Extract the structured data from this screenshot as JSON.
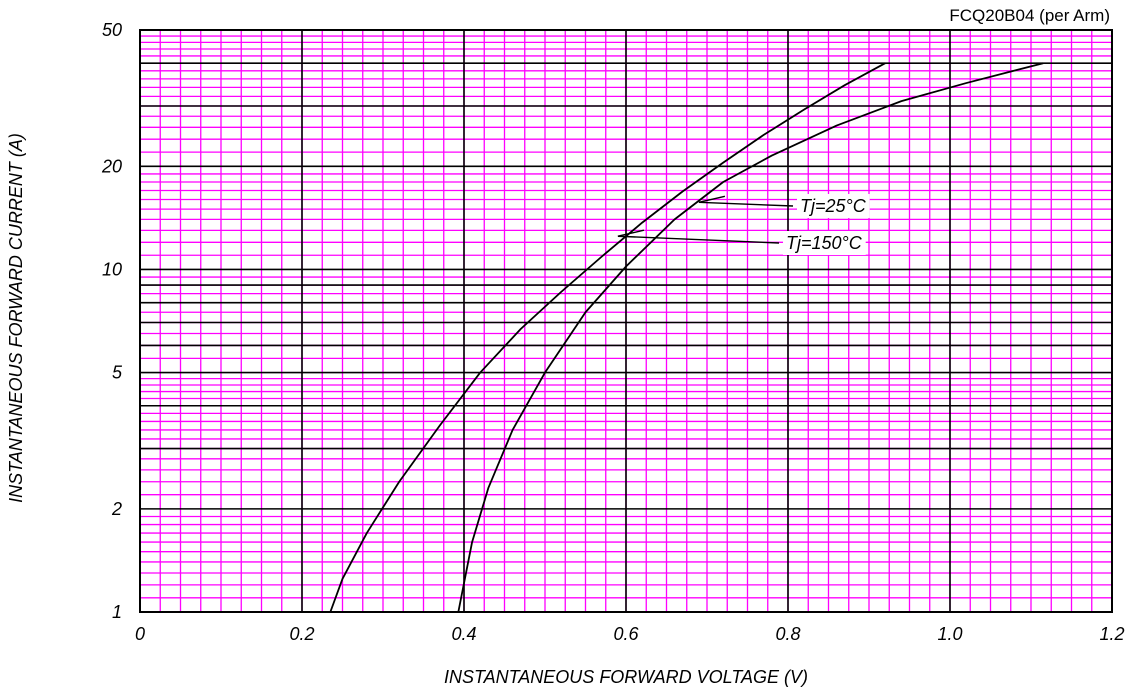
{
  "chart_data": {
    "type": "line",
    "subtitle": "FCQ20B04 (per Arm)",
    "xlabel": "INSTANTANEOUS FORWARD VOLTAGE (V)",
    "ylabel": "INSTANTANEOUS FORWARD CURRENT (A)",
    "xlim": [
      0,
      1.2
    ],
    "ylim": [
      1,
      50
    ],
    "y_scale": "log",
    "grid": true,
    "x_ticks": [
      {
        "value": 0,
        "label": "0"
      },
      {
        "value": 0.2,
        "label": "0.2"
      },
      {
        "value": 0.4,
        "label": "0.4"
      },
      {
        "value": 0.6,
        "label": "0.6"
      },
      {
        "value": 0.8,
        "label": "0.8"
      },
      {
        "value": 1.0,
        "label": "1.0"
      },
      {
        "value": 1.2,
        "label": "1.2"
      }
    ],
    "y_ticks": [
      {
        "value": 1,
        "label": "1"
      },
      {
        "value": 2,
        "label": "2"
      },
      {
        "value": 5,
        "label": "5"
      },
      {
        "value": 10,
        "label": "10"
      },
      {
        "value": 20,
        "label": "20"
      },
      {
        "value": 50,
        "label": "50"
      }
    ],
    "series": [
      {
        "name": "Tj=150°C",
        "x": [
          0.235,
          0.25,
          0.28,
          0.32,
          0.37,
          0.42,
          0.47,
          0.52,
          0.57,
          0.62,
          0.67,
          0.72,
          0.77,
          0.82,
          0.87,
          0.92
        ],
        "y": [
          1.0,
          1.25,
          1.7,
          2.4,
          3.5,
          5.0,
          6.7,
          8.6,
          10.9,
          13.7,
          16.9,
          20.5,
          24.7,
          29.3,
          34.5,
          40.0
        ]
      },
      {
        "name": "Tj=25°C",
        "x": [
          0.393,
          0.41,
          0.43,
          0.46,
          0.5,
          0.55,
          0.6,
          0.66,
          0.72,
          0.78,
          0.86,
          0.94,
          1.02,
          1.115
        ],
        "y": [
          1.0,
          1.6,
          2.3,
          3.4,
          5.0,
          7.5,
          10.2,
          14.0,
          18.0,
          21.5,
          26.3,
          31.0,
          35.0,
          40.0
        ]
      }
    ],
    "annotations": [
      {
        "text": "Tj=25°C",
        "series": "Tj=25°C",
        "at_x": 0.69,
        "at_y": 15.7
      },
      {
        "text": "Tj=150°C",
        "series": "Tj=150°C",
        "at_x": 0.59,
        "at_y": 12.5
      }
    ],
    "colors": {
      "minor_grid": "#ff00ff",
      "major_grid": "#000000",
      "curves": "#000000",
      "background": "#ffffff"
    }
  }
}
